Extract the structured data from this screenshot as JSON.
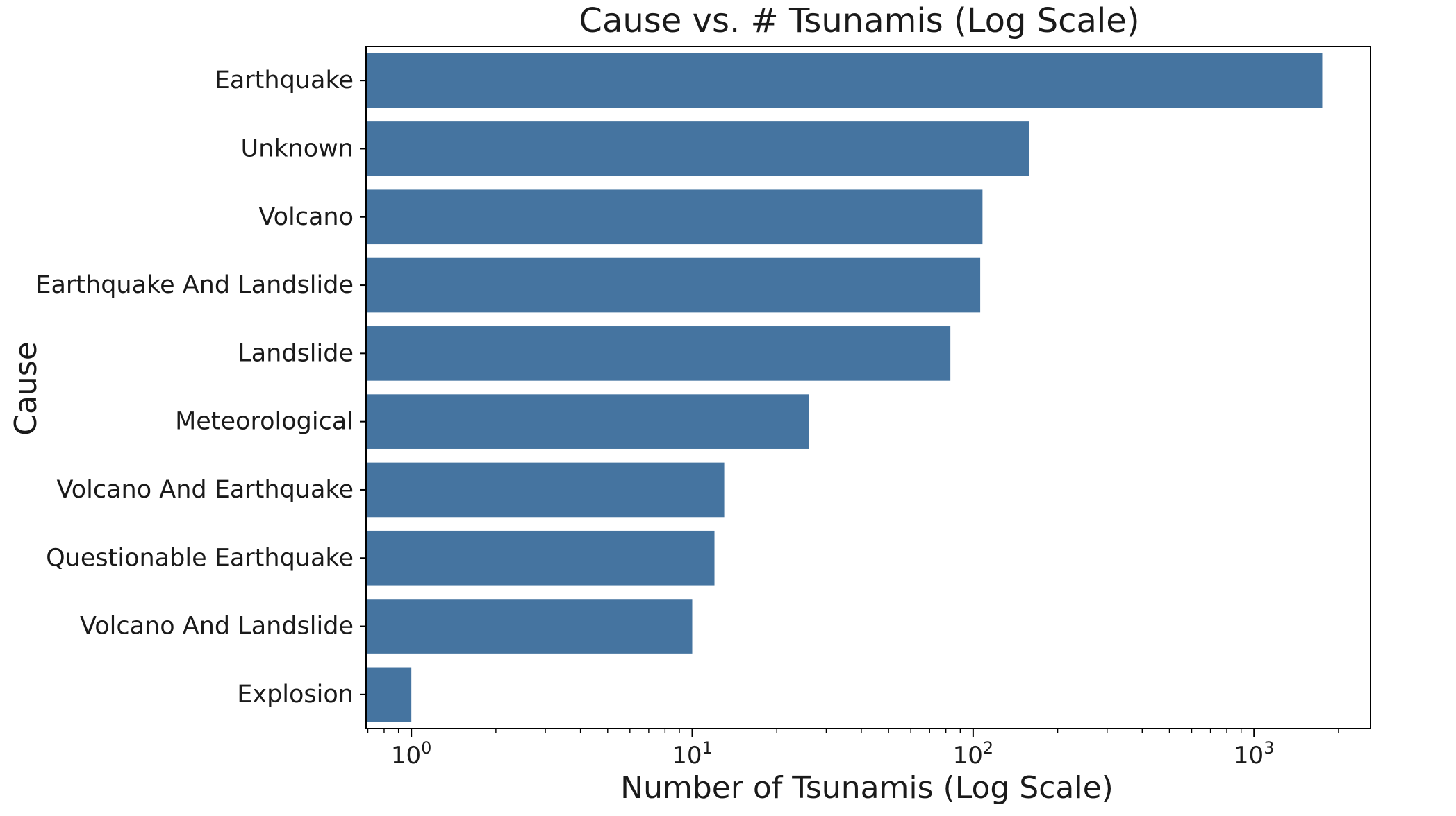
{
  "chart_data": {
    "type": "bar",
    "orientation": "horizontal",
    "title": "Cause vs. # Tsunamis (Log Scale)",
    "xlabel": "Number of Tsunamis (Log Scale)",
    "ylabel": "Cause",
    "xscale": "log",
    "xlim": [
      0.69,
      2600
    ],
    "x_ticks": [
      {
        "value": 1,
        "base": "10",
        "exp": "0"
      },
      {
        "value": 10,
        "base": "10",
        "exp": "1"
      },
      {
        "value": 100,
        "base": "10",
        "exp": "2"
      },
      {
        "value": 1000,
        "base": "10",
        "exp": "3"
      }
    ],
    "categories": [
      "Earthquake",
      "Unknown",
      "Volcano",
      "Earthquake And Landslide",
      "Landslide",
      "Meteorological",
      "Volcano And Earthquake",
      "Questionable Earthquake",
      "Volcano And Landslide",
      "Explosion"
    ],
    "values": [
      1750,
      158,
      108,
      106,
      83,
      26,
      13,
      12,
      10,
      1
    ],
    "color": "#4574a0",
    "grid": false,
    "legend": "none"
  }
}
